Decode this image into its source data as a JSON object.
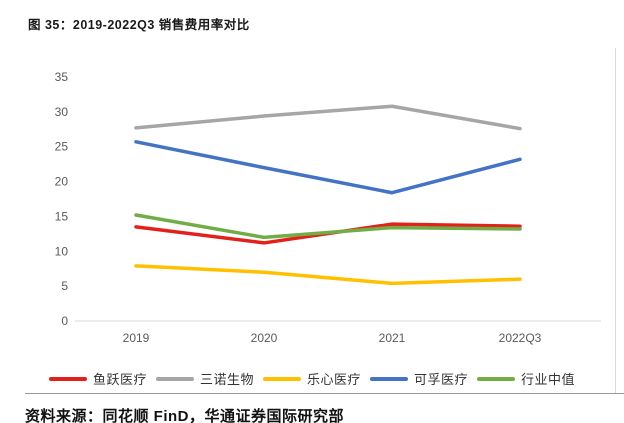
{
  "figure": {
    "title": "图 35：2019-2022Q3 销售费用率对比",
    "source": "资料来源：同花顺 FinD，华通证券国际研究部"
  },
  "chart_data": {
    "type": "line",
    "title": "2019-2022Q3 销售费用率对比",
    "categories": [
      "2019",
      "2020",
      "2021",
      "2022Q3"
    ],
    "series": [
      {
        "name": "鱼跃医疗",
        "color": "#e3211b",
        "values": [
          13.5,
          11.2,
          13.9,
          13.6
        ]
      },
      {
        "name": "三诺生物",
        "color": "#a6a6a6",
        "values": [
          27.7,
          29.4,
          30.8,
          27.6
        ]
      },
      {
        "name": "乐心医疗",
        "color": "#ffc000",
        "values": [
          7.9,
          7.0,
          5.4,
          6.0
        ]
      },
      {
        "name": "可孚医疗",
        "color": "#4472c4",
        "values": [
          25.7,
          22.0,
          18.4,
          23.2
        ]
      },
      {
        "name": "行业中值",
        "color": "#70ad47",
        "values": [
          15.2,
          12.0,
          13.4,
          13.2
        ]
      }
    ],
    "ylim": [
      0,
      35
    ],
    "yticks": [
      0,
      5,
      10,
      15,
      20,
      25,
      30,
      35
    ],
    "grid": false,
    "legend_position": "bottom",
    "axis_color": "#d9d9d9",
    "tick_color": "#595959"
  }
}
